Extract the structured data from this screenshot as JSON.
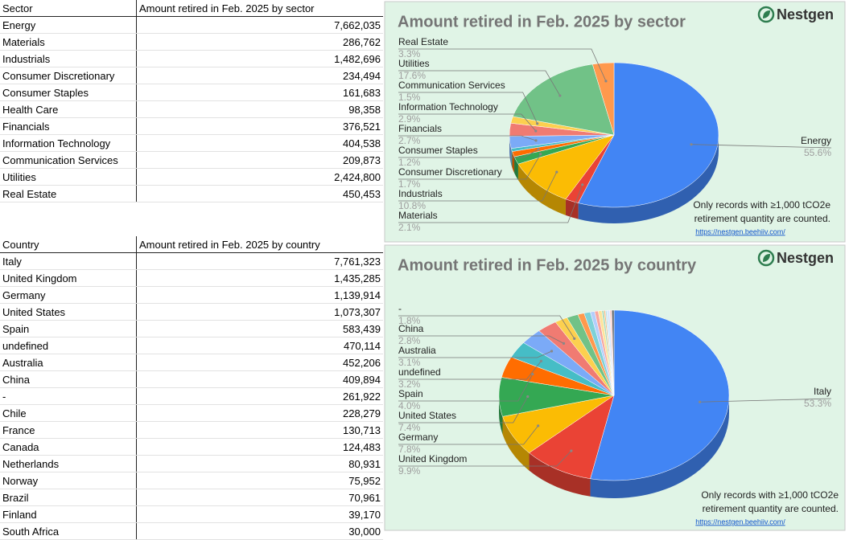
{
  "sector_table": {
    "header": [
      "Sector",
      "Amount retired in Feb. 2025 by sector"
    ],
    "rows": [
      [
        "Energy",
        "7,662,035"
      ],
      [
        "Materials",
        "286,762"
      ],
      [
        "Industrials",
        "1,482,696"
      ],
      [
        "Consumer Discretionary",
        "234,494"
      ],
      [
        "Consumer Staples",
        "161,683"
      ],
      [
        "Health Care",
        "98,358"
      ],
      [
        "Financials",
        "376,521"
      ],
      [
        "Information Technology",
        "404,538"
      ],
      [
        "Communication Services",
        "209,873"
      ],
      [
        "Utilities",
        "2,424,800"
      ],
      [
        "Real Estate",
        "450,453"
      ]
    ]
  },
  "country_table": {
    "header": [
      "Country",
      "Amount retired in Feb. 2025 by country"
    ],
    "rows": [
      [
        "Italy",
        "7,761,323"
      ],
      [
        "United Kingdom",
        "1,435,285"
      ],
      [
        "Germany",
        "1,139,914"
      ],
      [
        "United States",
        "1,073,307"
      ],
      [
        "Spain",
        "583,439"
      ],
      [
        "undefined",
        "470,114"
      ],
      [
        "Australia",
        "452,206"
      ],
      [
        "China",
        "409,894"
      ],
      [
        "-",
        "261,922"
      ],
      [
        "Chile",
        "228,279"
      ],
      [
        "France",
        "130,713"
      ],
      [
        "Canada",
        "124,483"
      ],
      [
        "Netherlands",
        "80,931"
      ],
      [
        "Norway",
        "75,952"
      ],
      [
        "Brazil",
        "70,961"
      ],
      [
        "Finland",
        "39,170"
      ],
      [
        "South Africa",
        "30,000"
      ]
    ]
  },
  "chart_data": [
    {
      "type": "pie",
      "title": "Amount retired in Feb. 2025 by sector",
      "logo": "Nestgen",
      "note_lines": [
        "Only records with ≥1,000 tCO2e",
        "retirement quantity are counted."
      ],
      "link": "https://nestgen.beehiiv.com/",
      "categories": [
        "Energy",
        "Materials",
        "Industrials",
        "Consumer Discretionary",
        "Consumer Staples",
        null,
        "Financials",
        "Information Technology",
        "Communication Services",
        "Utilities",
        "Real Estate"
      ],
      "values": [
        55.6,
        2.1,
        10.8,
        1.7,
        1.2,
        0.7,
        2.7,
        2.9,
        1.5,
        17.6,
        3.3
      ],
      "value_labels": [
        "55.6%",
        "2.1%",
        "10.8%",
        "1.7%",
        "1.2%",
        null,
        "2.7%",
        "2.9%",
        "1.5%",
        "17.6%",
        "3.3%"
      ],
      "colors": [
        "#4285f4",
        "#ea4335",
        "#fbbc04",
        "#34a853",
        "#ff6d01",
        "#46bdc6",
        "#7baaf7",
        "#f07b72",
        "#fcd04f",
        "#71c287",
        "#ff994d"
      ]
    },
    {
      "type": "pie",
      "title": "Amount retired in Feb. 2025 by country",
      "logo": "Nestgen",
      "note_lines": [
        "Only records with ≥1,000 tCO2e",
        "retirement quantity are counted."
      ],
      "link": "https://nestgen.beehiiv.com/",
      "categories": [
        "Italy",
        "United Kingdom",
        "Germany",
        "United States",
        "Spain",
        "undefined",
        "Australia",
        "China",
        "-",
        null,
        null,
        null,
        null,
        null,
        null,
        null,
        null,
        null,
        null,
        null,
        null
      ],
      "values": [
        53.3,
        9.9,
        7.8,
        7.4,
        4.0,
        3.2,
        3.1,
        2.8,
        1.8,
        1.6,
        0.9,
        0.9,
        0.6,
        0.5,
        0.5,
        0.3,
        0.2,
        0.2,
        0.4,
        0.3,
        0.3
      ],
      "value_labels": [
        "53.3%",
        "9.9%",
        "7.8%",
        "7.4%",
        "4.0%",
        "3.2%",
        "3.1%",
        "2.8%",
        "1.8%",
        null,
        null,
        null,
        null,
        null,
        null,
        null,
        null,
        null,
        null,
        null,
        null
      ],
      "colors": [
        "#4285f4",
        "#ea4335",
        "#fbbc04",
        "#34a853",
        "#ff6d01",
        "#46bdc6",
        "#7baaf7",
        "#f07b72",
        "#fcd04f",
        "#71c287",
        "#ff994d",
        "#7ed1d7",
        "#b3cefb",
        "#f7a7a0",
        "#fde49b",
        "#aedcba",
        "#ffb984",
        "#b5e3e6",
        "#d9e6fc",
        "#fbd3d0",
        "#5f6368"
      ]
    }
  ]
}
